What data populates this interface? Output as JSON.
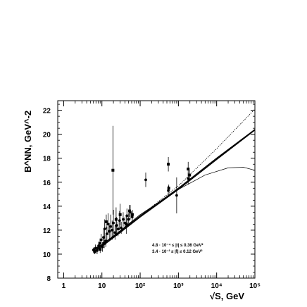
{
  "chart_data": {
    "type": "scatter",
    "x_scale": "log",
    "xlim": [
      0.7,
      100000
    ],
    "ylim": [
      8,
      22.8
    ],
    "x_ticks": [
      {
        "value": 1,
        "label": "1"
      },
      {
        "value": 10,
        "label": "10"
      },
      {
        "value": 100,
        "label": "10²"
      },
      {
        "value": 1000,
        "label": "10³"
      },
      {
        "value": 10000,
        "label": "10⁴"
      },
      {
        "value": 100000,
        "label": "10⁵"
      }
    ],
    "y_ticks": [
      {
        "value": 8,
        "label": "8"
      },
      {
        "value": 10,
        "label": "10"
      },
      {
        "value": 12,
        "label": "12"
      },
      {
        "value": 14,
        "label": "14"
      },
      {
        "value": 16,
        "label": "16"
      },
      {
        "value": 18,
        "label": "18"
      },
      {
        "value": 20,
        "label": "20"
      },
      {
        "value": 22,
        "label": "22"
      }
    ],
    "xlabel": "√S, GeV",
    "ylabel": "B^NN, GeV^-2",
    "legend": [
      "4.8 · 10⁻⁴ ≤ |t| ≤ 0.36 GeV²",
      "3.4 · 10⁻³ ≤ |t̄| ≤ 0.12 GeV²"
    ],
    "grid": false,
    "series": [
      {
        "marker": "circle",
        "points": [
          {
            "x": 6.0,
            "y": 10.35,
            "err": 0.2
          },
          {
            "x": 6.8,
            "y": 10.5,
            "err": 0.3
          },
          {
            "x": 7.5,
            "y": 10.3,
            "err": 0.3
          },
          {
            "x": 8.2,
            "y": 10.7,
            "err": 0.35
          },
          {
            "x": 8.9,
            "y": 10.9,
            "err": 0.4
          },
          {
            "x": 9.6,
            "y": 11.2,
            "err": 0.5
          },
          {
            "x": 10.3,
            "y": 10.6,
            "err": 0.4
          },
          {
            "x": 11.0,
            "y": 11.4,
            "err": 0.6
          },
          {
            "x": 11.8,
            "y": 12.1,
            "err": 0.8
          },
          {
            "x": 12.6,
            "y": 11.1,
            "err": 0.5
          },
          {
            "x": 13.5,
            "y": 11.7,
            "err": 0.6
          },
          {
            "x": 14.5,
            "y": 12.5,
            "err": 0.9
          },
          {
            "x": 15.6,
            "y": 11.9,
            "err": 0.7
          },
          {
            "x": 17.0,
            "y": 12.3,
            "err": 1.0
          },
          {
            "x": 18.5,
            "y": 12.0,
            "err": 0.8
          },
          {
            "x": 20.0,
            "y": 12.6,
            "err": 1.1
          },
          {
            "x": 22.0,
            "y": 11.8,
            "err": 0.6
          },
          {
            "x": 24.0,
            "y": 12.4,
            "err": 0.7
          },
          {
            "x": 26.5,
            "y": 12.1,
            "err": 0.6
          },
          {
            "x": 29.0,
            "y": 12.8,
            "err": 0.8
          },
          {
            "x": 32.0,
            "y": 12.2,
            "err": 0.5
          },
          {
            "x": 36.0,
            "y": 12.9,
            "err": 0.6
          },
          {
            "x": 40.0,
            "y": 12.6,
            "err": 0.5
          },
          {
            "x": 45.0,
            "y": 13.2,
            "err": 0.6
          },
          {
            "x": 50.0,
            "y": 12.9,
            "err": 0.5
          },
          {
            "x": 55.0,
            "y": 13.5,
            "err": 0.6
          },
          {
            "x": 62.0,
            "y": 13.1,
            "err": 0.5
          },
          {
            "x": 140.0,
            "y": 16.2,
            "err": 0.6
          },
          {
            "x": 546.0,
            "y": 15.3,
            "err": 0.4
          },
          {
            "x": 900.0,
            "y": 14.9,
            "err": 1.5
          },
          {
            "x": 1800.0,
            "y": 16.3,
            "err": 0.5
          }
        ]
      },
      {
        "marker": "square",
        "points": [
          {
            "x": 6.5,
            "y": 10.2,
            "err": 0.2
          },
          {
            "x": 9.0,
            "y": 10.4,
            "err": 0.3
          },
          {
            "x": 11.5,
            "y": 10.9,
            "err": 0.4
          },
          {
            "x": 13.0,
            "y": 12.7,
            "err": 0.6
          },
          {
            "x": 19.4,
            "y": 17.0,
            "err": 3.7
          },
          {
            "x": 23.5,
            "y": 12.9,
            "err": 1.0
          },
          {
            "x": 30.0,
            "y": 13.3,
            "err": 0.9
          },
          {
            "x": 44.0,
            "y": 12.5,
            "err": 0.8
          },
          {
            "x": 52.8,
            "y": 13.6,
            "err": 0.5
          },
          {
            "x": 62.5,
            "y": 13.3,
            "err": 0.4
          },
          {
            "x": 546.0,
            "y": 17.5,
            "err": 0.6
          },
          {
            "x": 560.0,
            "y": 15.5,
            "err": 0.3
          },
          {
            "x": 1800.0,
            "y": 17.1,
            "err": 0.6
          },
          {
            "x": 1960.0,
            "y": 16.6,
            "err": 0.4
          }
        ]
      }
    ],
    "curves": [
      {
        "style": "solid",
        "points": [
          [
            6,
            10.35
          ],
          [
            10,
            10.75
          ],
          [
            30,
            11.9
          ],
          [
            100,
            13.2
          ],
          [
            1000,
            15.5
          ],
          [
            10000,
            18.0
          ],
          [
            100000,
            20.4
          ]
        ]
      },
      {
        "style": "solid",
        "points": [
          [
            6,
            10.2
          ],
          [
            10,
            10.65
          ],
          [
            30,
            11.8
          ],
          [
            100,
            13.1
          ],
          [
            1000,
            15.4
          ],
          [
            10000,
            17.9
          ],
          [
            100000,
            20.35
          ]
        ]
      },
      {
        "style": "dotted",
        "points": [
          [
            6,
            10.3
          ],
          [
            10,
            10.7
          ],
          [
            30,
            11.85
          ],
          [
            100,
            13.2
          ],
          [
            1000,
            15.7
          ],
          [
            10000,
            18.8
          ],
          [
            100000,
            22.1
          ]
        ]
      },
      {
        "style": "thin",
        "points": [
          [
            6,
            10.45
          ],
          [
            10,
            10.8
          ],
          [
            30,
            11.95
          ],
          [
            100,
            13.3
          ],
          [
            1000,
            15.4
          ],
          [
            5000,
            16.6
          ],
          [
            20000,
            17.2
          ],
          [
            50000,
            17.25
          ],
          [
            100000,
            17.0
          ]
        ]
      }
    ]
  }
}
